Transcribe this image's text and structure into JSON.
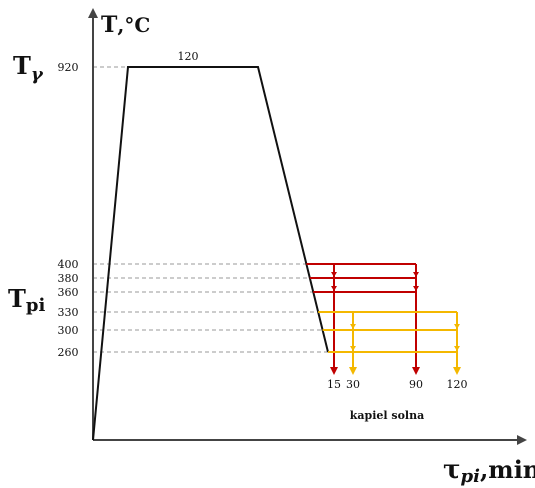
{
  "axes": {
    "y_title_T": "T",
    "y_title_unit": ",°C",
    "x_title_tau": "τ",
    "x_title_sub": "pi",
    "x_title_unit": ",min"
  },
  "labels": {
    "t_gamma": "T",
    "t_gamma_sub": "γ",
    "t_pi": "T",
    "t_pi_sub": "pi",
    "hold_time": "120",
    "bath": "kapiel solna"
  },
  "colors": {
    "profile": "#111111",
    "red_group": "#c00000",
    "yellow_group": "#f4b800",
    "guides": "#9a9a9a"
  },
  "chart_data": {
    "type": "line",
    "austenitizing_temperature": 920,
    "austenitizing_time": 120,
    "y_ticks": [
      920,
      400,
      380,
      360,
      330,
      300,
      260
    ],
    "x_ticks": [
      15,
      30,
      90,
      120
    ],
    "red_temperatures": [
      400,
      380,
      360
    ],
    "yellow_temperatures": [
      330,
      300,
      260
    ],
    "red_times": [
      15,
      90
    ],
    "yellow_times": [
      30,
      120
    ],
    "cooling_end_temperature": 260
  }
}
